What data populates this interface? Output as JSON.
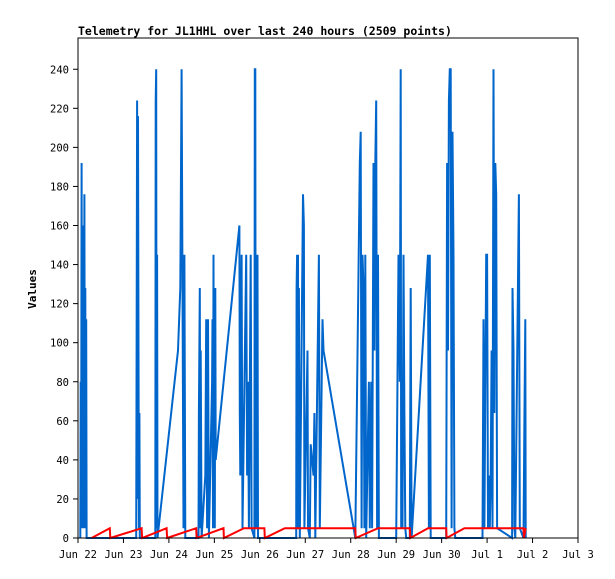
{
  "chart_data": {
    "type": "line",
    "title": "Telemetry for JL1HHL over last 240 hours (2509 points)",
    "ylabel": "Values",
    "xlabel": "",
    "x_ticks": [
      "Jun 22",
      "Jun 23",
      "Jun 24",
      "Jun 25",
      "Jun 26",
      "Jun 27",
      "Jun 28",
      "Jun 29",
      "Jun 30",
      "Jul 1",
      "Jul 2",
      "Jul 3"
    ],
    "y_ticks": [
      0,
      20,
      40,
      60,
      80,
      100,
      120,
      140,
      160,
      180,
      200,
      220,
      240
    ],
    "xlim_days": [
      0,
      11
    ],
    "ylim": [
      0,
      256
    ],
    "grid": false,
    "colors": {
      "blue": "#0066cc",
      "red": "#ff0000",
      "axis": "#000000"
    },
    "series": [
      {
        "color": "#0066cc",
        "points": [
          [
            0.05,
            0
          ],
          [
            0.06,
            80
          ],
          [
            0.07,
            40
          ],
          [
            0.08,
            192
          ],
          [
            0.09,
            5
          ],
          [
            0.1,
            160
          ],
          [
            0.11,
            60
          ],
          [
            0.12,
            145
          ],
          [
            0.13,
            5
          ],
          [
            0.14,
            176
          ],
          [
            0.15,
            40
          ],
          [
            0.16,
            128
          ],
          [
            0.17,
            5
          ],
          [
            0.18,
            112
          ],
          [
            0.19,
            0
          ],
          [
            1.0,
            0
          ],
          [
            1.28,
            0
          ],
          [
            1.29,
            96
          ],
          [
            1.3,
            224
          ],
          [
            1.31,
            20
          ],
          [
            1.32,
            216
          ],
          [
            1.33,
            96
          ],
          [
            1.34,
            5
          ],
          [
            1.35,
            64
          ],
          [
            1.36,
            0
          ],
          [
            1.7,
            0
          ],
          [
            1.71,
            224
          ],
          [
            1.72,
            240
          ],
          [
            1.73,
            5
          ],
          [
            1.74,
            145
          ],
          [
            1.75,
            0
          ],
          [
            2.2,
            96
          ],
          [
            2.25,
            128
          ],
          [
            2.28,
            240
          ],
          [
            2.3,
            128
          ],
          [
            2.32,
            5
          ],
          [
            2.34,
            145
          ],
          [
            2.36,
            0
          ],
          [
            2.65,
            0
          ],
          [
            2.66,
            64
          ],
          [
            2.68,
            128
          ],
          [
            2.69,
            5
          ],
          [
            2.7,
            96
          ],
          [
            2.72,
            0
          ],
          [
            2.8,
            32
          ],
          [
            2.82,
            112
          ],
          [
            2.84,
            5
          ],
          [
            2.86,
            112
          ],
          [
            2.88,
            0
          ],
          [
            2.95,
            80
          ],
          [
            2.96,
            112
          ],
          [
            2.97,
            5
          ],
          [
            2.98,
            145
          ],
          [
            2.99,
            20
          ],
          [
            3.0,
            128
          ],
          [
            3.01,
            5
          ],
          [
            3.02,
            128
          ],
          [
            3.03,
            40
          ],
          [
            3.55,
            160
          ],
          [
            3.56,
            64
          ],
          [
            3.57,
            32
          ],
          [
            3.6,
            145
          ],
          [
            3.62,
            5
          ],
          [
            3.7,
            145
          ],
          [
            3.72,
            32
          ],
          [
            3.74,
            80
          ],
          [
            3.76,
            5
          ],
          [
            3.8,
            145
          ],
          [
            3.82,
            5
          ],
          [
            3.88,
            0
          ],
          [
            3.89,
            240
          ],
          [
            3.9,
            240
          ],
          [
            3.91,
            5
          ],
          [
            3.92,
            145
          ],
          [
            3.93,
            5
          ],
          [
            3.95,
            145
          ],
          [
            3.96,
            0
          ],
          [
            4.8,
            0
          ],
          [
            4.81,
            128
          ],
          [
            4.82,
            145
          ],
          [
            4.83,
            5
          ],
          [
            4.84,
            145
          ],
          [
            4.85,
            5
          ],
          [
            4.86,
            128
          ],
          [
            4.88,
            0
          ],
          [
            4.95,
            176
          ],
          [
            4.97,
            160
          ],
          [
            4.98,
            5
          ],
          [
            5.0,
            32
          ],
          [
            5.05,
            96
          ],
          [
            5.06,
            5
          ],
          [
            5.1,
            0
          ],
          [
            5.12,
            48
          ],
          [
            5.18,
            32
          ],
          [
            5.2,
            64
          ],
          [
            5.22,
            0
          ],
          [
            5.3,
            145
          ],
          [
            5.32,
            5
          ],
          [
            5.38,
            112
          ],
          [
            5.4,
            96
          ],
          [
            6.1,
            0
          ],
          [
            6.2,
            192
          ],
          [
            6.22,
            208
          ],
          [
            6.24,
            5
          ],
          [
            6.26,
            145
          ],
          [
            6.28,
            128
          ],
          [
            6.3,
            5
          ],
          [
            6.32,
            145
          ],
          [
            6.34,
            0
          ],
          [
            6.4,
            80
          ],
          [
            6.42,
            5
          ],
          [
            6.45,
            80
          ],
          [
            6.47,
            5
          ],
          [
            6.5,
            192
          ],
          [
            6.52,
            96
          ],
          [
            6.54,
            192
          ],
          [
            6.56,
            224
          ],
          [
            6.58,
            5
          ],
          [
            6.6,
            145
          ],
          [
            6.62,
            0
          ],
          [
            7.0,
            0
          ],
          [
            7.05,
            145
          ],
          [
            7.08,
            80
          ],
          [
            7.1,
            240
          ],
          [
            7.11,
            5
          ],
          [
            7.12,
            80
          ],
          [
            7.14,
            5
          ],
          [
            7.16,
            145
          ],
          [
            7.18,
            64
          ],
          [
            7.2,
            5
          ],
          [
            7.22,
            0
          ],
          [
            7.3,
            0
          ],
          [
            7.32,
            128
          ],
          [
            7.34,
            0
          ],
          [
            7.7,
            145
          ],
          [
            7.72,
            5
          ],
          [
            7.74,
            145
          ],
          [
            7.76,
            0
          ],
          [
            8.1,
            0
          ],
          [
            8.12,
            192
          ],
          [
            8.14,
            96
          ],
          [
            8.16,
            224
          ],
          [
            8.18,
            240
          ],
          [
            8.2,
            240
          ],
          [
            8.22,
            5
          ],
          [
            8.24,
            208
          ],
          [
            8.26,
            145
          ],
          [
            8.28,
            5
          ],
          [
            8.3,
            0
          ],
          [
            8.9,
            0
          ],
          [
            8.92,
            112
          ],
          [
            8.94,
            5
          ],
          [
            8.98,
            145
          ],
          [
            9.0,
            145
          ],
          [
            9.02,
            5
          ],
          [
            9.04,
            32
          ],
          [
            9.06,
            5
          ],
          [
            9.08,
            32
          ],
          [
            9.1,
            96
          ],
          [
            9.12,
            5
          ],
          [
            9.14,
            240
          ],
          [
            9.16,
            64
          ],
          [
            9.18,
            192
          ],
          [
            9.2,
            176
          ],
          [
            9.22,
            5
          ],
          [
            9.55,
            0
          ],
          [
            9.56,
            128
          ],
          [
            9.58,
            96
          ],
          [
            9.6,
            5
          ],
          [
            9.62,
            0
          ],
          [
            9.7,
            176
          ],
          [
            9.72,
            5
          ],
          [
            9.8,
            0
          ],
          [
            9.82,
            60
          ],
          [
            9.84,
            112
          ],
          [
            9.85,
            0
          ]
        ]
      },
      {
        "color": "#ff0000",
        "points": [
          [
            0.3,
            0
          ],
          [
            0.7,
            5
          ],
          [
            0.71,
            0
          ],
          [
            1.4,
            5
          ],
          [
            1.41,
            0
          ],
          [
            1.95,
            5
          ],
          [
            1.96,
            0
          ],
          [
            2.6,
            5
          ],
          [
            2.61,
            0
          ],
          [
            3.2,
            5
          ],
          [
            3.21,
            0
          ],
          [
            3.65,
            5
          ],
          [
            4.1,
            5
          ],
          [
            4.11,
            0
          ],
          [
            4.55,
            5
          ],
          [
            6.1,
            5
          ],
          [
            6.11,
            0
          ],
          [
            6.6,
            5
          ],
          [
            7.3,
            5
          ],
          [
            7.31,
            0
          ],
          [
            7.7,
            5
          ],
          [
            8.1,
            5
          ],
          [
            8.11,
            0
          ],
          [
            8.5,
            5
          ],
          [
            9.2,
            5
          ],
          [
            9.8,
            5
          ],
          [
            9.81,
            0
          ],
          [
            9.85,
            5
          ]
        ]
      }
    ]
  }
}
